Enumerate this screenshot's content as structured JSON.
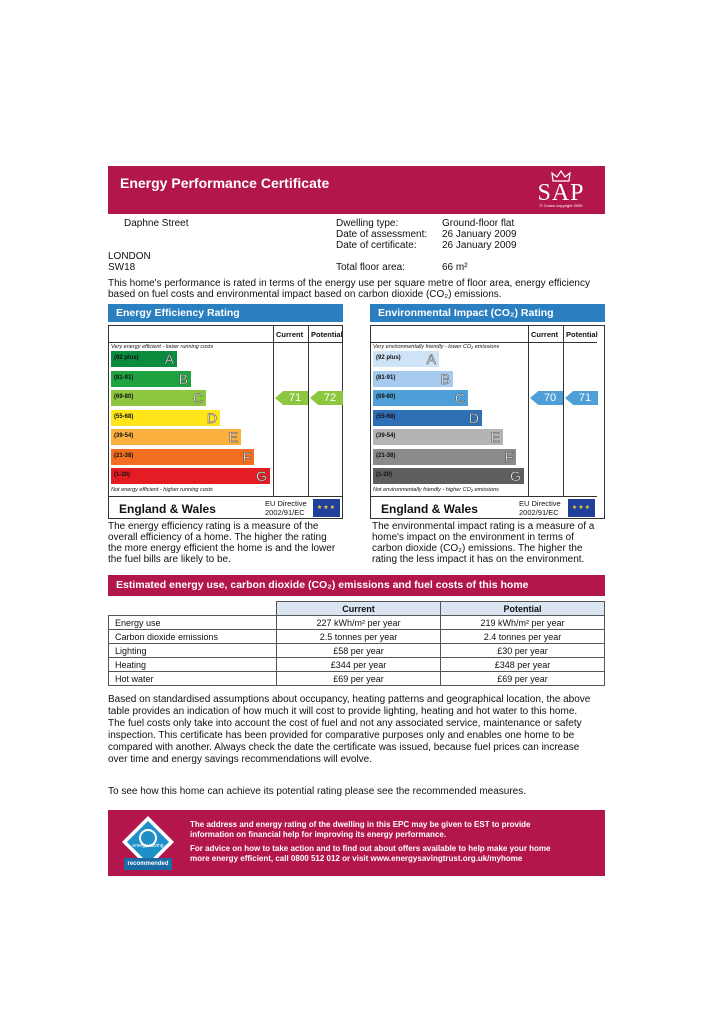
{
  "header": {
    "title": "Energy Performance Certificate",
    "logo_text": "SAP",
    "logo_small": "© Crown copyright 2005"
  },
  "address": {
    "street": "Daphne Street",
    "city": "LONDON",
    "postcode": "SW18"
  },
  "details": {
    "dwelling_type_label": "Dwelling type:",
    "dwelling_type_value": "Ground-floor flat",
    "assessment_label": "Date of assessment:",
    "assessment_value": "26 January 2009",
    "certificate_label": "Date of certificate:",
    "certificate_value": "26 January 2009",
    "floor_area_label": "Total floor area:",
    "floor_area_value": "66 m²"
  },
  "intro_line1": "This home's performance is rated in terms of the energy use per square metre of floor area, energy efficiency",
  "intro_line2": "based on fuel costs and environmental impact based on carbon dioxide (CO₂) emissions.",
  "efficiency": {
    "title": "Energy Efficiency Rating",
    "col_current": "Current",
    "col_potential": "Potential",
    "top_note": "Very energy efficient - lower running costs",
    "bottom_note": "Not energy efficient - higher running costs",
    "bands": [
      {
        "range": "(92 plus)",
        "letter": "A",
        "color": "#0a8c3f"
      },
      {
        "range": "(81-91)",
        "letter": "B",
        "color": "#1fa340"
      },
      {
        "range": "(69-80)",
        "letter": "C",
        "color": "#8dc63f"
      },
      {
        "range": "(55-68)",
        "letter": "D",
        "color": "#ffe51a"
      },
      {
        "range": "(39-54)",
        "letter": "E",
        "color": "#fbb040"
      },
      {
        "range": "(21-38)",
        "letter": "F",
        "color": "#f26f21"
      },
      {
        "range": "(1-20)",
        "letter": "G",
        "color": "#e31d23"
      }
    ],
    "current": 71,
    "potential": 72,
    "arrow_color": "#8dc63f",
    "region": "England & Wales",
    "eu_line1": "EU Directive",
    "eu_line2": "2002/91/EC",
    "desc": [
      "The energy efficiency rating is a measure of the",
      "overall efficiency of a home. The higher the rating",
      "the more energy efficient the home is and the lower",
      "the fuel bills are likely to be."
    ]
  },
  "environmental": {
    "title": "Environmental Impact (CO₂) Rating",
    "col_current": "Current",
    "col_potential": "Potential",
    "top_note": "Very environmentally friendly - lower CO₂ emissions",
    "bottom_note": "Not environmentally friendly - higher CO₂ emissions",
    "bands": [
      {
        "range": "(92 plus)",
        "letter": "A",
        "color": "#cfe3f6"
      },
      {
        "range": "(81-91)",
        "letter": "B",
        "color": "#a6cbee"
      },
      {
        "range": "(69-80)",
        "letter": "C",
        "color": "#4e9fd8"
      },
      {
        "range": "(55-68)",
        "letter": "D",
        "color": "#2f6fb6"
      },
      {
        "range": "(39-54)",
        "letter": "E",
        "color": "#b4b4b4"
      },
      {
        "range": "(21-38)",
        "letter": "F",
        "color": "#8a8a8a"
      },
      {
        "range": "(1-20)",
        "letter": "G",
        "color": "#5e5e5e"
      }
    ],
    "current": 70,
    "potential": 71,
    "arrow_color": "#4e9fd8",
    "region": "England & Wales",
    "eu_line1": "EU Directive",
    "eu_line2": "2002/91/EC",
    "desc": [
      "The environmental impact rating is a measure of a",
      "home's impact on the environment in terms of",
      "carbon dioxide (CO₂) emissions. The higher the",
      "rating the less impact it has on the environment."
    ]
  },
  "estimated": {
    "title": "Estimated energy use, carbon dioxide (CO₂) emissions and fuel costs of this home",
    "col_current": "Current",
    "col_potential": "Potential",
    "rows": [
      {
        "label": "Energy use",
        "current": "227 kWh/m² per year",
        "potential": "219 kWh/m² per year"
      },
      {
        "label": "Carbon dioxide emissions",
        "current": "2.5 tonnes per year",
        "potential": "2.4 tonnes per year"
      },
      {
        "label": "Lighting",
        "current": "£58 per year",
        "potential": "£30 per year"
      },
      {
        "label": "Heating",
        "current": "£344 per year",
        "potential": "£348 per year"
      },
      {
        "label": "Hot water",
        "current": "£69 per year",
        "potential": "£69 per year"
      }
    ]
  },
  "body_lines": [
    "Based on standardised assumptions about occupancy, heating patterns and geographical location, the above",
    "table provides an indication of how much it will cost to provide lighting, heating and hot water to this home.",
    "The fuel costs only take into account the cost of fuel and not any associated service, maintenance or safety",
    "inspection. This certificate has been provided for comparative purposes only and enables one home to be",
    "compared with another. Always check the date the certificate was issued, because fuel prices can increase",
    "over time and energy savings recommendations will evolve."
  ],
  "see_more": "To see how this home can achieve its potential rating please see the recommended measures.",
  "banner": {
    "logo_top": "energy saving",
    "logo_bottom": "recommended",
    "line1": "The address and energy rating of the dwelling in this EPC may be given to EST to provide",
    "line2": "information on financial help for improving its energy performance.",
    "line3": "For advice on how to take action and to find out about offers available to help make your home",
    "line4": "more energy efficient, call 0800 512 012 or visit www.energysavingtrust.org.uk/myhome"
  }
}
